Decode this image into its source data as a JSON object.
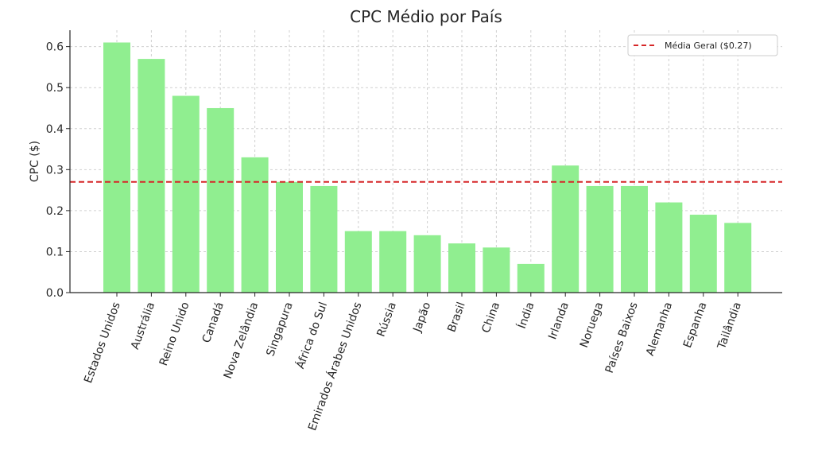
{
  "chart_data": {
    "type": "bar",
    "title": "CPC Médio por País",
    "xlabel": "",
    "ylabel": "CPC ($)",
    "ylim": [
      0,
      0.64
    ],
    "yticks": [
      "0.0",
      "0.1",
      "0.2",
      "0.3",
      "0.4",
      "0.5",
      "0.6"
    ],
    "grid": true,
    "categories": [
      "Estados Unidos",
      "Austrália",
      "Reino Unido",
      "Canadá",
      "Nova Zelândia",
      "Singapura",
      "África do Sul",
      "Emirados Árabes Unidos",
      "Rússia",
      "Japão",
      "Brasil",
      "China",
      "Índia",
      "Irlanda",
      "Noruega",
      "Países Baixos",
      "Alemanha",
      "Espanha",
      "Tailândia"
    ],
    "values": [
      0.61,
      0.57,
      0.48,
      0.45,
      0.33,
      0.27,
      0.26,
      0.15,
      0.15,
      0.14,
      0.12,
      0.11,
      0.07,
      0.31,
      0.26,
      0.26,
      0.22,
      0.19,
      0.17
    ],
    "bar_color": "#90ee90",
    "reference_line": {
      "value": 0.27,
      "label": "Média Geral ($0.27)",
      "color": "#d62728",
      "style": "dashed"
    },
    "legend_position": "top-right"
  }
}
